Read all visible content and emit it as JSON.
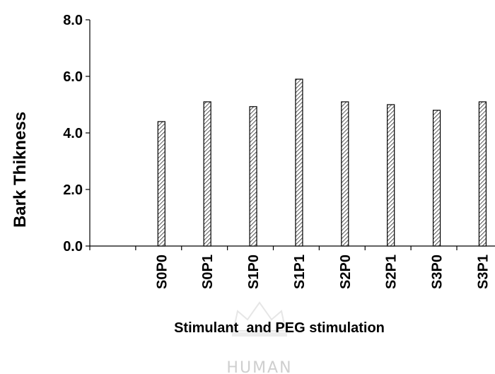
{
  "chart_data": {
    "type": "bar",
    "categories": [
      "",
      "S0P0",
      "S0P1",
      "S1P0",
      "S1P1",
      "S2P0",
      "S2P1",
      "S3P0",
      "S3P1"
    ],
    "values": [
      null,
      4.4,
      5.1,
      4.93,
      5.9,
      5.1,
      5.0,
      4.8,
      5.1
    ],
    "xlabel": "Stimulant  and PEG stimulation",
    "ylabel": "Bark Thikness",
    "ylim": [
      0,
      8
    ],
    "yticks": [
      "0.0",
      "2.0",
      "4.0",
      "6.0",
      "8.0"
    ],
    "grid": false,
    "legend": "none"
  },
  "watermark": {
    "text": "HUMAN",
    "icon": "crown-watermark-icon"
  }
}
